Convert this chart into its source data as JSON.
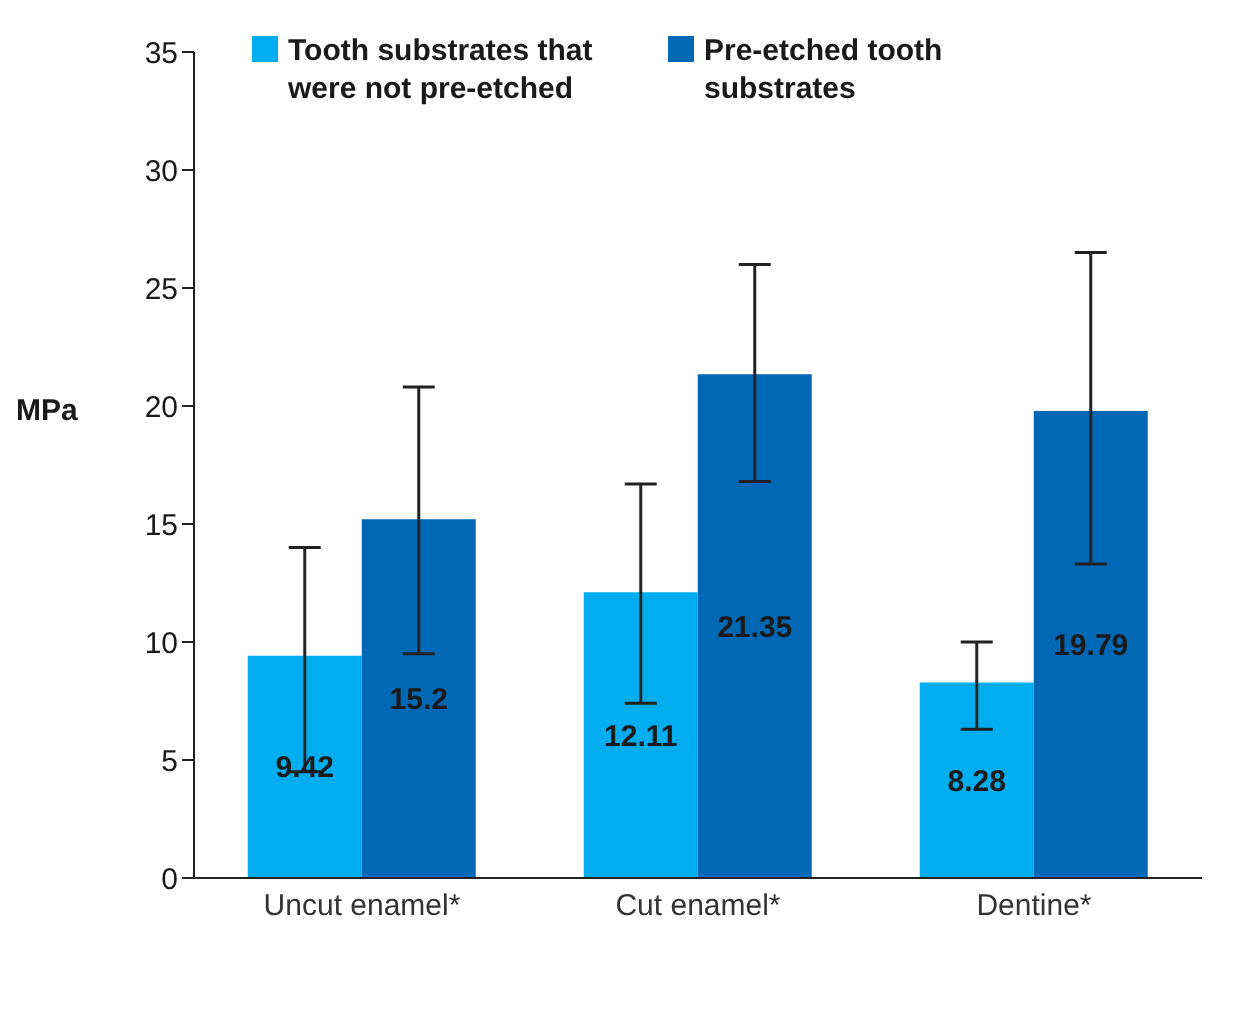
{
  "chart_data": {
    "type": "bar",
    "ylabel": "MPa",
    "categories": [
      "Uncut enamel*",
      "Cut enamel*",
      "Dentine*"
    ],
    "series": [
      {
        "name": "Tooth substrates that were not pre-etched",
        "color": "#00aeef",
        "values": [
          9.42,
          12.11,
          8.28
        ],
        "errors": [
          [
            4.5,
            14.0
          ],
          [
            7.4,
            16.7
          ],
          [
            6.3,
            10.0
          ]
        ]
      },
      {
        "name": "Pre-etched tooth substrates",
        "color": "#0068b4",
        "values": [
          15.2,
          21.35,
          19.79
        ],
        "errors": [
          [
            9.5,
            20.8
          ],
          [
            16.8,
            26.0
          ],
          [
            13.3,
            26.5
          ]
        ]
      }
    ],
    "ylim": [
      0,
      35
    ],
    "yticks": [
      0,
      5,
      10,
      15,
      20,
      25,
      30,
      35
    ],
    "grid": false,
    "legend": "top left",
    "data_labels": true
  }
}
